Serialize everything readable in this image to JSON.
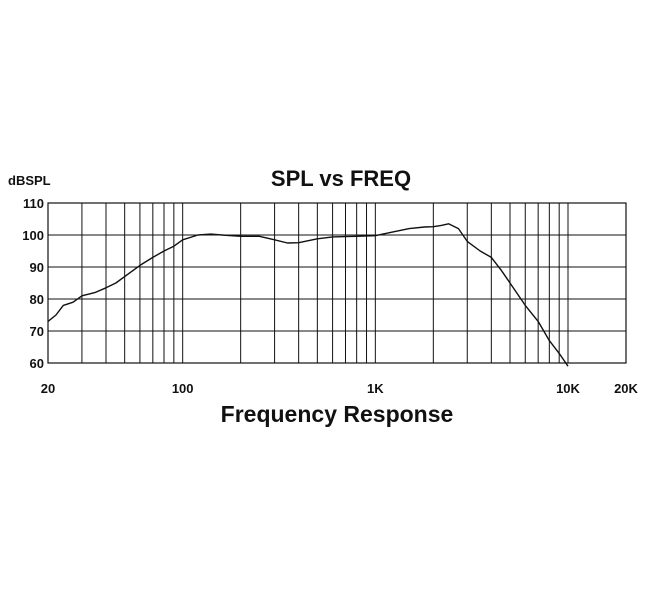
{
  "chart_data": {
    "type": "line",
    "title": "SPL vs FREQ",
    "ylabel": "dBSPL",
    "xlabel": "Frequency Response",
    "x_scale": "log",
    "grid": true,
    "xlim": [
      20,
      20000
    ],
    "ylim": [
      60,
      110
    ],
    "x_ticks": [
      {
        "value": 20,
        "label": "20"
      },
      {
        "value": 100,
        "label": "100"
      },
      {
        "value": 1000,
        "label": "1K"
      },
      {
        "value": 10000,
        "label": "10K"
      },
      {
        "value": 20000,
        "label": "20K"
      }
    ],
    "y_ticks": [
      {
        "value": 110,
        "label": "110"
      },
      {
        "value": 100,
        "label": "100"
      },
      {
        "value": 90,
        "label": "90"
      },
      {
        "value": 80,
        "label": "80"
      },
      {
        "value": 70,
        "label": "70"
      },
      {
        "value": 60,
        "label": "60"
      }
    ],
    "series": [
      {
        "x": [
          20,
          22,
          24,
          27,
          30,
          35,
          40,
          45,
          50,
          60,
          70,
          80,
          90,
          100,
          120,
          140,
          160,
          200,
          250,
          300,
          350,
          400,
          500,
          600,
          700,
          800,
          1000,
          1200,
          1500,
          1800,
          2000,
          2200,
          2400,
          2700,
          3000,
          3500,
          4000,
          4500,
          5000,
          6000,
          7000,
          8000,
          9000,
          10000
        ],
        "y": [
          73,
          75,
          78,
          79,
          81,
          82,
          83.5,
          85,
          87,
          90.5,
          93,
          95,
          96.5,
          98.5,
          100,
          100.3,
          100,
          99.6,
          99.6,
          98.5,
          97.5,
          97.6,
          98.8,
          99.4,
          99.5,
          99.6,
          99.8,
          100.8,
          102,
          102.5,
          102.6,
          103,
          103.5,
          102,
          98,
          95,
          93,
          89,
          85,
          78,
          73,
          67,
          63,
          59
        ]
      }
    ],
    "line_color": "#111111"
  }
}
